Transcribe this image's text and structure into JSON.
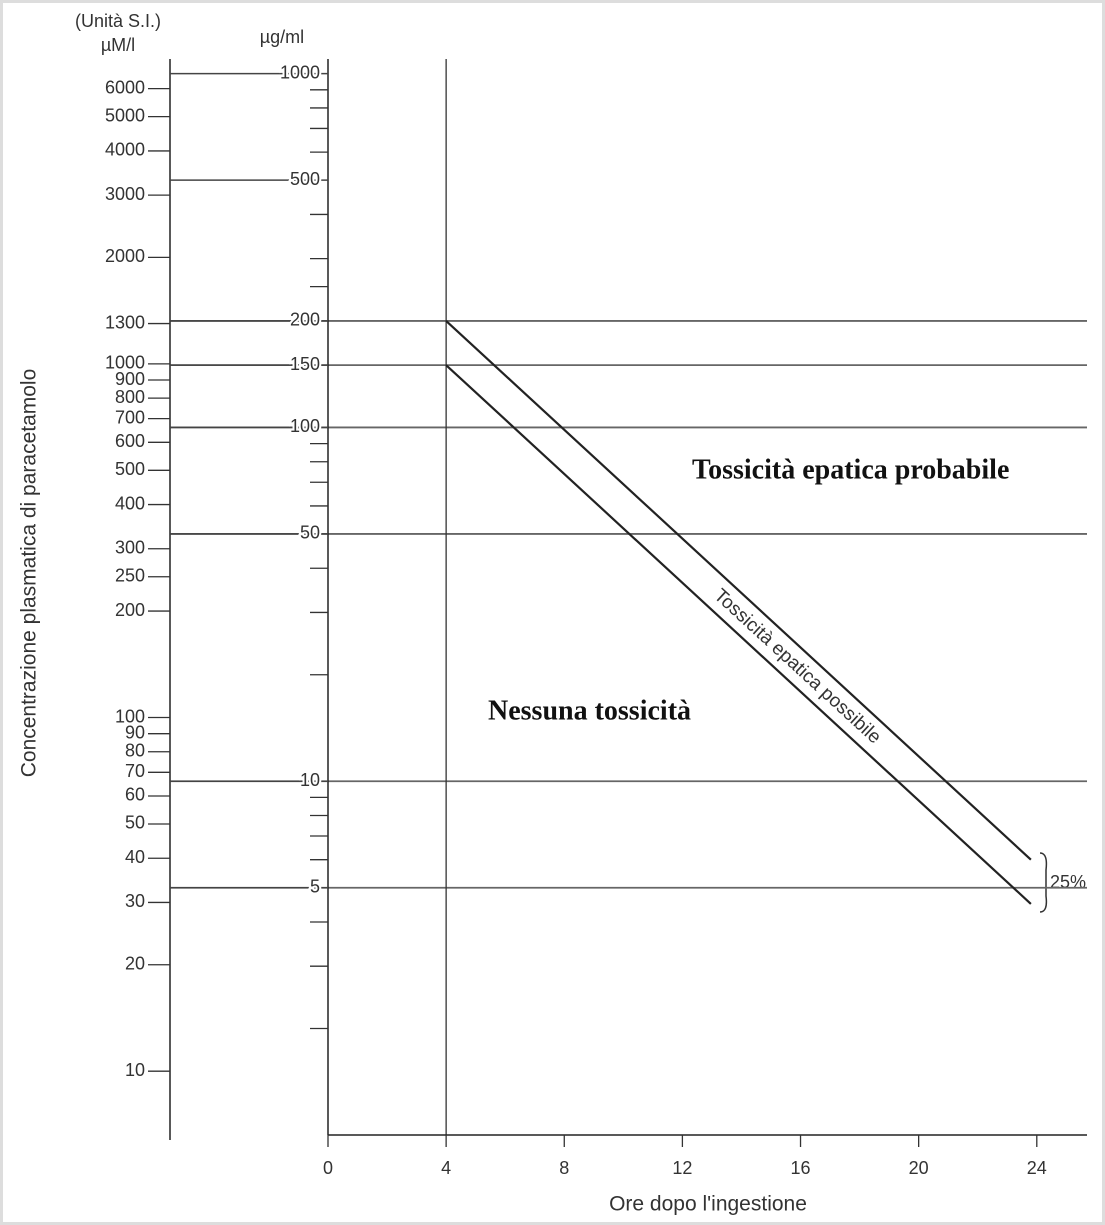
{
  "chart_data": {
    "type": "line",
    "y2_title_line1": "(Unità S.I.)",
    "y2_title_line2": "µM/l",
    "y_unit": "µg/ml",
    "y_label": "Concentrazione plasmatica di paracetamolo",
    "x_label": "Ore dopo l'ingestione",
    "annotations": [
      "Tossicità epatica probabile",
      "Nessuna tossicità",
      "Tossicità epatica possibile",
      "25%"
    ],
    "log_scale": true,
    "xlim": [
      0,
      25.7
    ],
    "xticks": [
      0,
      4,
      8,
      12,
      16,
      20,
      24
    ],
    "ylim": [
      1,
      1100
    ],
    "yticks": [
      1000,
      500,
      200,
      150,
      100,
      50,
      10,
      5
    ],
    "yminor": [
      900,
      800,
      700,
      600,
      400,
      300,
      250,
      90,
      80,
      70,
      60,
      40,
      30,
      20,
      9,
      8,
      7,
      6,
      4,
      3,
      2
    ],
    "reference_lines": [
      200,
      150,
      100,
      50,
      10,
      5
    ],
    "vertical_line": 4,
    "y2lim": [
      6.6,
      7277
    ],
    "y2ticks": [
      6000,
      5000,
      4000,
      3000,
      2000,
      1300,
      1000,
      900,
      800,
      700,
      600,
      500,
      400,
      300,
      250,
      200,
      100,
      90,
      80,
      70,
      60,
      50,
      40,
      30,
      20,
      10
    ],
    "series": [
      {
        "color": "#222222",
        "x": [
          4,
          23.8
        ],
        "values": [
          200,
          6
        ]
      },
      {
        "color": "#222222",
        "x": [
          4,
          23.8
        ],
        "values": [
          150,
          4.5
        ]
      }
    ]
  }
}
